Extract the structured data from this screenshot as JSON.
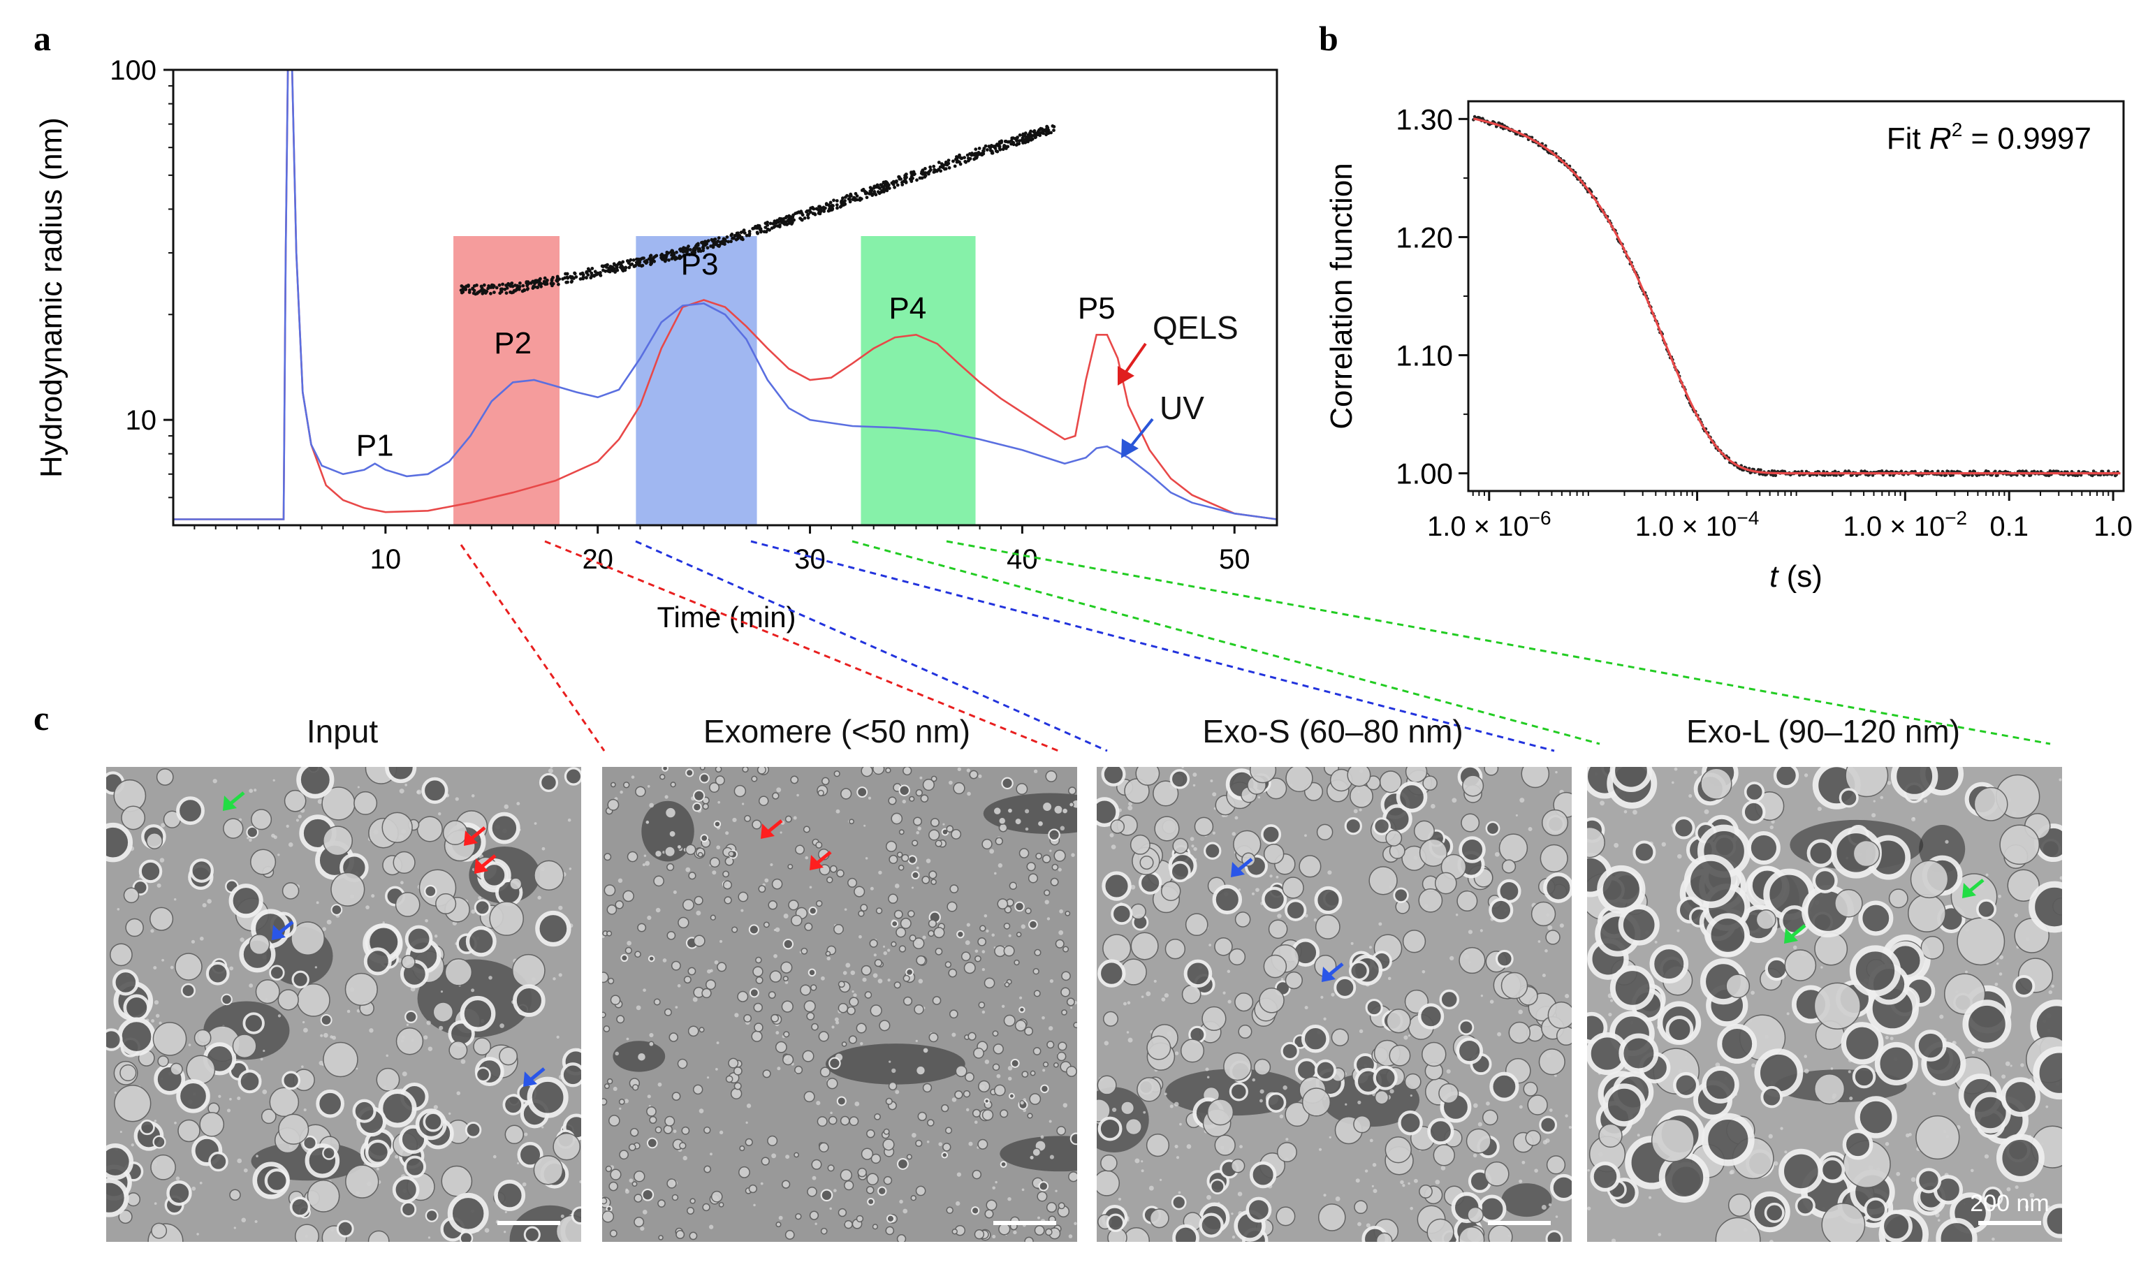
{
  "panels": {
    "a": "a",
    "b": "b",
    "c": "c"
  },
  "chart_data": [
    {
      "id": "a",
      "type": "line",
      "ylabel": "Hydrodynamic radius (nm)",
      "xlabel": "Time (min)",
      "yscale": "log",
      "ylim": [
        5,
        100
      ],
      "xlim": [
        0,
        52
      ],
      "x_ticks": [
        "10",
        "20",
        "30",
        "40",
        "50"
      ],
      "x_tick_values": [
        10,
        20,
        30,
        40,
        50
      ],
      "y_ticks": [
        "10",
        "100"
      ],
      "y_tick_values": [
        10,
        100
      ],
      "fraction_bands": [
        {
          "range": [
            13.2,
            18.2
          ],
          "color": "#f49797"
        },
        {
          "range": [
            21.8,
            27.5
          ],
          "color": "#9bb3f0"
        },
        {
          "range": [
            32.4,
            37.8
          ],
          "color": "#7ff0a4"
        }
      ],
      "peak_labels": [
        {
          "label": "P1",
          "x": 9.5,
          "y": 7.9
        },
        {
          "label": "P2",
          "x": 16,
          "y": 15.5
        },
        {
          "label": "P3",
          "x": 24.8,
          "y": 26
        },
        {
          "label": "P4",
          "x": 34.6,
          "y": 19.5
        },
        {
          "label": "P5",
          "x": 43.5,
          "y": 19.5
        }
      ],
      "series": [
        {
          "name": "QELS",
          "color": "#e84848",
          "points": [
            [
              0,
              5.2
            ],
            [
              5.2,
              5.2
            ],
            [
              5.3,
              30
            ],
            [
              5.4,
              100
            ],
            [
              5.6,
              100
            ],
            [
              5.8,
              30
            ],
            [
              6.1,
              12
            ],
            [
              6.5,
              8.5
            ],
            [
              7.2,
              6.5
            ],
            [
              8,
              5.9
            ],
            [
              9,
              5.6
            ],
            [
              10,
              5.45
            ],
            [
              12,
              5.5
            ],
            [
              14,
              5.8
            ],
            [
              16,
              6.2
            ],
            [
              18,
              6.7
            ],
            [
              20,
              7.6
            ],
            [
              21,
              8.8
            ],
            [
              22,
              11
            ],
            [
              23,
              16
            ],
            [
              24,
              21
            ],
            [
              25,
              22
            ],
            [
              26,
              21
            ],
            [
              27,
              18.5
            ],
            [
              28,
              16
            ],
            [
              29,
              14
            ],
            [
              30,
              13
            ],
            [
              31,
              13.2
            ],
            [
              32,
              14.5
            ],
            [
              33,
              16
            ],
            [
              34,
              17.2
            ],
            [
              35,
              17.5
            ],
            [
              36,
              16.5
            ],
            [
              37,
              14.5
            ],
            [
              38,
              12.8
            ],
            [
              39,
              11.5
            ],
            [
              40,
              10.5
            ],
            [
              41,
              9.6
            ],
            [
              42,
              8.8
            ],
            [
              42.5,
              9
            ],
            [
              43,
              13
            ],
            [
              43.5,
              17.5
            ],
            [
              44,
              17.5
            ],
            [
              44.5,
              15
            ],
            [
              45,
              11
            ],
            [
              46,
              8.2
            ],
            [
              47,
              6.8
            ],
            [
              48,
              6.1
            ],
            [
              50,
              5.4
            ],
            [
              52,
              5.2
            ]
          ]
        },
        {
          "name": "UV",
          "color": "#5a6fe0",
          "points": [
            [
              0,
              5.2
            ],
            [
              5.2,
              5.2
            ],
            [
              5.3,
              30
            ],
            [
              5.4,
              100
            ],
            [
              5.6,
              100
            ],
            [
              5.8,
              30
            ],
            [
              6.1,
              12
            ],
            [
              6.5,
              8.5
            ],
            [
              7,
              7.4
            ],
            [
              8,
              7
            ],
            [
              9,
              7.2
            ],
            [
              9.5,
              7.5
            ],
            [
              10,
              7.2
            ],
            [
              11,
              6.9
            ],
            [
              12,
              7
            ],
            [
              13,
              7.6
            ],
            [
              14,
              9
            ],
            [
              15,
              11.3
            ],
            [
              16,
              12.8
            ],
            [
              17,
              13
            ],
            [
              18,
              12.5
            ],
            [
              19,
              12
            ],
            [
              20,
              11.6
            ],
            [
              21,
              12.2
            ],
            [
              22,
              15
            ],
            [
              23,
              19
            ],
            [
              24,
              21.2
            ],
            [
              25,
              21.5
            ],
            [
              26,
              20
            ],
            [
              27,
              17
            ],
            [
              28,
              13
            ],
            [
              29,
              10.8
            ],
            [
              30,
              10
            ],
            [
              32,
              9.6
            ],
            [
              34,
              9.5
            ],
            [
              36,
              9.3
            ],
            [
              38,
              8.8
            ],
            [
              40,
              8.2
            ],
            [
              42,
              7.5
            ],
            [
              43,
              7.8
            ],
            [
              43.5,
              8.3
            ],
            [
              44,
              8.4
            ],
            [
              45,
              7.8
            ],
            [
              46,
              7
            ],
            [
              47,
              6.2
            ],
            [
              48,
              5.8
            ],
            [
              50,
              5.4
            ],
            [
              52,
              5.2
            ]
          ]
        },
        {
          "name": "radius",
          "color": "#111111",
          "points": [
            [
              13.5,
              23.5
            ],
            [
              16,
              23.8
            ],
            [
              18,
              25
            ],
            [
              20,
              26.5
            ],
            [
              22,
              28.2
            ],
            [
              24,
              30
            ],
            [
              26,
              32.5
            ],
            [
              28,
              35.5
            ],
            [
              30,
              39
            ],
            [
              32,
              43
            ],
            [
              34,
              47.5
            ],
            [
              36,
              52.5
            ],
            [
              38,
              58
            ],
            [
              40,
              63.5
            ],
            [
              41.5,
              68.5
            ]
          ]
        }
      ],
      "annotations": [
        {
          "text": "QELS",
          "color": "#e01f1f"
        },
        {
          "text": "UV",
          "color": "#2a56d8"
        }
      ]
    },
    {
      "id": "b",
      "type": "line",
      "ylabel": "Correlation function",
      "xlabel": "t (s)",
      "xscale": "log",
      "xlim_log10": [
        -6.2,
        0.1
      ],
      "ylim": [
        0.985,
        1.315
      ],
      "y_ticks": [
        "1.00",
        "1.10",
        "1.20",
        "1.30"
      ],
      "y_tick_values": [
        1.0,
        1.1,
        1.2,
        1.3
      ],
      "x_ticks": [
        {
          "base": "1.0 × 10",
          "exp": "−6",
          "log10": -6
        },
        {
          "base": "1.0 × 10",
          "exp": "−4",
          "log10": -4
        },
        {
          "base": "1.0 × 10",
          "exp": "−2",
          "log10": -2
        },
        {
          "base": "0.1",
          "exp": "",
          "log10": -1
        },
        {
          "base": "1.0",
          "exp": "",
          "log10": 0
        }
      ],
      "fit_text": {
        "prefix": "Fit ",
        "var": "R",
        "exp": "2",
        "suffix": " = 0.9997"
      },
      "model": {
        "baseline": 1.0,
        "amplitude": 0.31,
        "decay_time_s": 0.00011,
        "stretch": 0.82
      },
      "series": [
        {
          "name": "data",
          "color": "#222222"
        },
        {
          "name": "fit",
          "color": "#e84848"
        }
      ]
    }
  ],
  "micrographs": [
    {
      "title": "Input",
      "tone": "#a2a2a2"
    },
    {
      "title": "Exomere (<50 nm)",
      "tone": "#999999"
    },
    {
      "title": "Exo-S (60–80 nm)",
      "tone": "#a4a4a4"
    },
    {
      "title": "Exo-L (90–120 nm)",
      "tone": "#a9a9a9"
    }
  ],
  "scale_bar_label": "200 nm",
  "arrow_colors": {
    "red": "#ff1f1f",
    "blue": "#2a56e8",
    "green": "#22dd44"
  },
  "connector_colors": {
    "red": "#e81f1f",
    "blue": "#2233dd",
    "green": "#22cc22"
  }
}
